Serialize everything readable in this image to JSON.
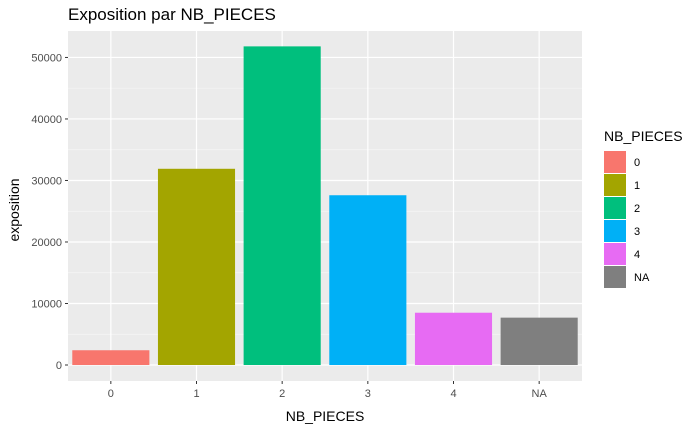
{
  "chart_data": {
    "type": "bar",
    "title": "Exposition par NB_PIECES",
    "xlabel": "NB_PIECES",
    "ylabel": "exposition",
    "categories": [
      "0",
      "1",
      "2",
      "3",
      "4",
      "NA"
    ],
    "values": [
      2400,
      31900,
      51800,
      27600,
      8500,
      7700
    ],
    "colors": [
      "#F8766D",
      "#A3A500",
      "#00BF7D",
      "#00B0F6",
      "#E76BF3",
      "#7F7F7F"
    ],
    "ylim": [
      -2600,
      54300
    ],
    "yticks": [
      0,
      10000,
      20000,
      30000,
      40000,
      50000
    ],
    "ytick_labels": [
      "0",
      "10000",
      "20000",
      "30000",
      "40000",
      "50000"
    ],
    "grid": true,
    "legend": {
      "title": "NB_PIECES",
      "placement": "right",
      "entries": [
        "0",
        "1",
        "2",
        "3",
        "4",
        "NA"
      ]
    }
  }
}
